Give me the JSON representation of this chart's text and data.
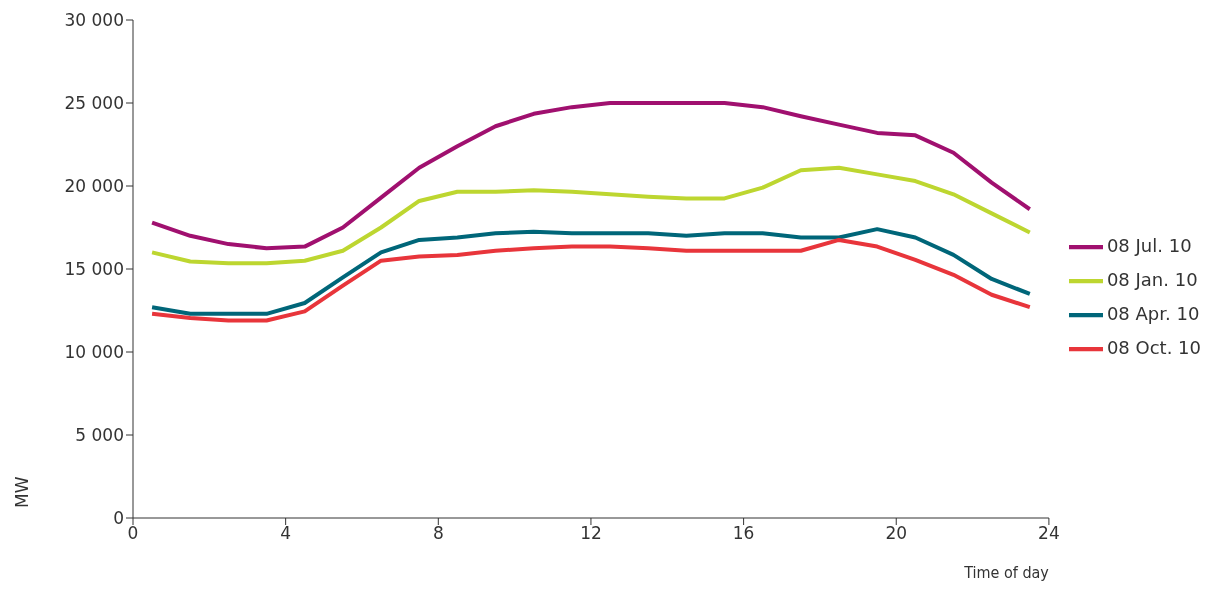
{
  "chart_data": {
    "type": "line",
    "xlabel": "Time of day",
    "ylabel": "MW",
    "x": [
      0.5,
      1.5,
      2.5,
      3.5,
      4.5,
      5.5,
      6.5,
      7.5,
      8.5,
      9.5,
      10.5,
      11.5,
      12.5,
      13.5,
      14.5,
      15.5,
      16.5,
      17.5,
      18.5,
      19.5,
      20.5,
      21.5,
      22.5,
      23.5
    ],
    "series": [
      {
        "name": "08 Jul. 10",
        "color": "#a0106f",
        "values": [
          17800,
          17000,
          16500,
          16250,
          16350,
          17500,
          19300,
          21100,
          22400,
          23600,
          24350,
          24750,
          25000,
          25000,
          25000,
          25000,
          24750,
          24200,
          23700,
          23200,
          23050,
          22000,
          20200,
          18600
        ]
      },
      {
        "name": "08 Jan. 10",
        "color": "#bdd630",
        "values": [
          16000,
          15450,
          15350,
          15350,
          15500,
          16100,
          17500,
          19100,
          19650,
          19650,
          19750,
          19650,
          19500,
          19350,
          19250,
          19250,
          19900,
          20950,
          21100,
          20700,
          20300,
          19500,
          18350,
          17200
        ]
      },
      {
        "name": "08 Apr. 10",
        "color": "#006679",
        "values": [
          12700,
          12300,
          12300,
          12300,
          12950,
          14500,
          16000,
          16750,
          16900,
          17150,
          17250,
          17150,
          17150,
          17150,
          17000,
          17150,
          17150,
          16900,
          16900,
          17400,
          16900,
          15850,
          14400,
          13500
        ]
      },
      {
        "name": "08 Oct. 10",
        "color": "#e8353b",
        "values": [
          12300,
          12050,
          11900,
          11900,
          12450,
          14000,
          15500,
          15750,
          15850,
          16100,
          16250,
          16350,
          16350,
          16250,
          16100,
          16100,
          16100,
          16100,
          16750,
          16350,
          15550,
          14650,
          13450,
          12700
        ]
      }
    ],
    "xlim": [
      0,
      24
    ],
    "xticks": [
      0,
      4,
      8,
      12,
      16,
      20,
      24
    ],
    "ylim": [
      0,
      30000
    ],
    "yticks": [
      {
        "value": 0,
        "label": "0"
      },
      {
        "value": 5000,
        "label": "5 000"
      },
      {
        "value": 10000,
        "label": "10 000"
      },
      {
        "value": 15000,
        "label": "15 000"
      },
      {
        "value": 20000,
        "label": "20 000"
      },
      {
        "value": 25000,
        "label": "25 000"
      },
      {
        "value": 30000,
        "label": "30 000"
      }
    ],
    "grid": false,
    "legend": "right",
    "marker": "none",
    "line_style": "solid"
  }
}
